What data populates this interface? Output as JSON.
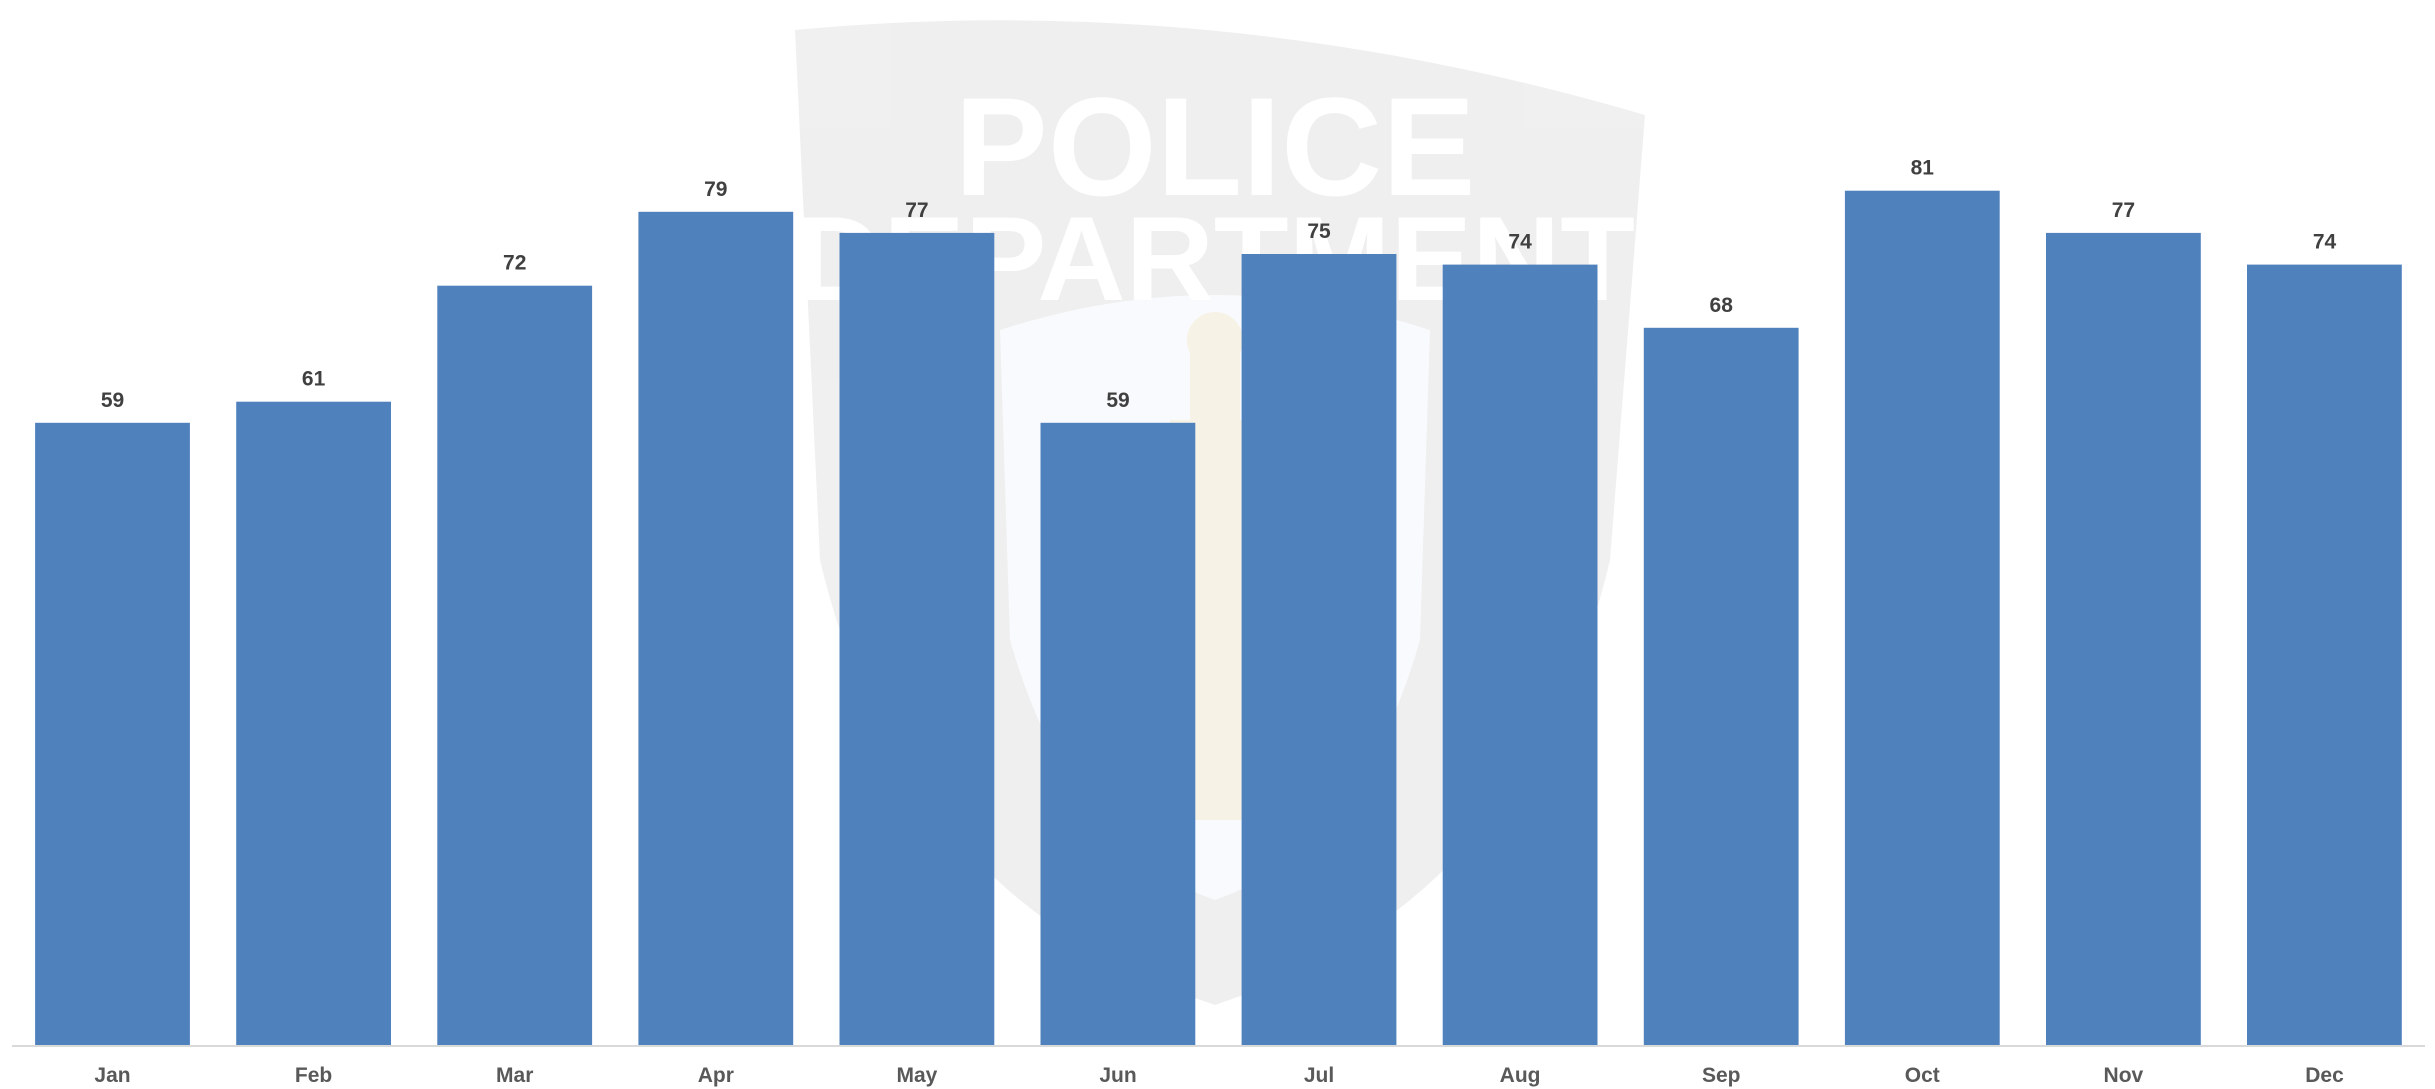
{
  "watermark": {
    "top_text": "POLICE",
    "mid_text": "DEPARTMENT"
  },
  "colors": {
    "bar": "#4f81bd",
    "value_label": "#404040",
    "tick_label": "#595959",
    "axis": "#d9d9d9"
  },
  "chart_data": {
    "type": "bar",
    "categories": [
      "Jan",
      "Feb",
      "Mar",
      "Apr",
      "May",
      "Jun",
      "Jul",
      "Aug",
      "Sep",
      "Oct",
      "Nov",
      "Dec"
    ],
    "values": [
      59,
      61,
      72,
      79,
      77,
      59,
      75,
      74,
      68,
      81,
      77,
      74
    ],
    "title": "",
    "xlabel": "",
    "ylabel": "",
    "ylim": [
      0,
      86
    ],
    "grid": false,
    "legend": "none",
    "data_labels": true
  }
}
